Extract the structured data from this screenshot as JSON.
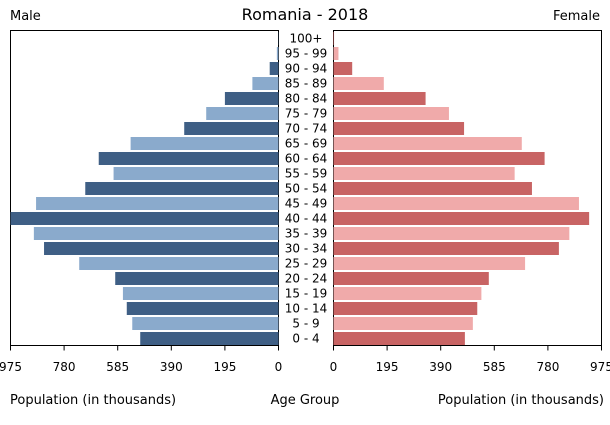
{
  "title": "Romania - 2018",
  "male_label": "Male",
  "female_label": "Female",
  "xlabel_left": "Population (in thousands)",
  "xlabel_center": "Age Group",
  "xlabel_right": "Population (in thousands)",
  "colors": {
    "male_dark": "#3f5f85",
    "male_light": "#8aaacc",
    "female_dark": "#c86464",
    "female_light": "#f0aaaa"
  },
  "chart_data": {
    "type": "bar",
    "orientation": "horizontal",
    "subtype": "population-pyramid",
    "title": "Romania - 2018",
    "xlabel": "Population (in thousands)",
    "ylabel": "Age Group",
    "xlim": [
      0,
      975
    ],
    "xticks": [
      975,
      780,
      585,
      390,
      195,
      0
    ],
    "xticks_right": [
      0,
      195,
      390,
      585,
      780,
      975
    ],
    "grid": false,
    "categories": [
      "0 - 4",
      "5 - 9",
      "10 - 14",
      "15 - 19",
      "20 - 24",
      "25 - 29",
      "30 - 34",
      "35 - 39",
      "40 - 44",
      "45 - 49",
      "50 - 54",
      "55 - 59",
      "60 - 64",
      "65 - 69",
      "70 - 74",
      "75 - 79",
      "80 - 84",
      "85 - 89",
      "90 - 94",
      "95 - 99",
      "100+"
    ],
    "series": [
      {
        "name": "Male",
        "values": [
          503,
          532,
          552,
          566,
          594,
          725,
          853,
          890,
          975,
          882,
          703,
          600,
          654,
          538,
          343,
          263,
          195,
          95,
          32,
          6,
          1
        ]
      },
      {
        "name": "Female",
        "values": [
          478,
          507,
          523,
          538,
          565,
          697,
          820,
          858,
          930,
          893,
          722,
          659,
          768,
          685,
          475,
          420,
          335,
          183,
          68,
          18,
          2
        ]
      }
    ]
  }
}
